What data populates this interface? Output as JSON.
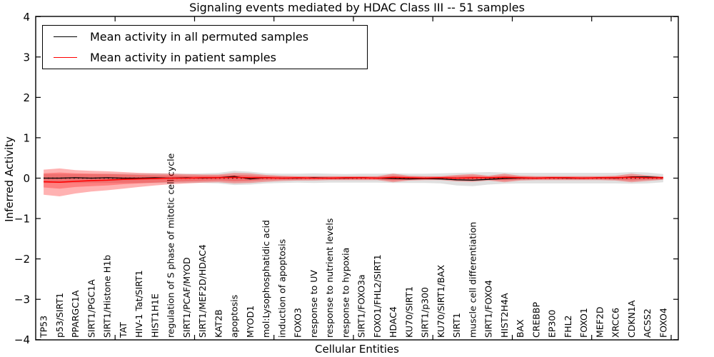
{
  "chart_data": {
    "type": "line",
    "title": "Signaling events mediated by HDAC Class III -- 51 samples",
    "xlabel": "Cellular Entities",
    "ylabel": "Inferred Activity",
    "ylim": [
      -4,
      4
    ],
    "yticks": [
      "4",
      "3",
      "2",
      "1",
      "0",
      "−1",
      "−2",
      "−3",
      "−4"
    ],
    "ytick_values": [
      4,
      3,
      2,
      1,
      0,
      -1,
      -2,
      -3,
      -4
    ],
    "grid": false,
    "legend_position": "upper-left",
    "zero_line": true,
    "categories": [
      "TP53",
      "p53/SIRT1",
      "PPARGC1A",
      "SIRT1/PGC1A",
      "SIRT1/Histone H1b",
      "TAT",
      "HIV-1 Tat/SIRT1",
      "HIST1H1E",
      "regulation of S phase of mitotic cell cycle",
      "SIRT1/PCAF/MYOD",
      "SIRT1/MEF2D/HDAC4",
      "KAT2B",
      "apoptosis",
      "MYOD1",
      "mol:Lysophosphatidic acid",
      "induction of apoptosis",
      "FOXO3",
      "response to UV",
      "response to nutrient levels",
      "response to hypoxia",
      "SIRT1/FOXO3a",
      "FOXO1/FHL2/SIRT1",
      "HDAC4",
      "KU70/SIRT1",
      "SIRT1/p300",
      "KU70/SIRT1/BAX",
      "SIRT1",
      "muscle cell differentiation",
      "SIRT1/FOXO4",
      "HIST2H4A",
      "BAX",
      "CREBBP",
      "EP300",
      "FHL2",
      "FOXO1",
      "MEF2D",
      "XRCC6",
      "CDKN1A",
      "ACSS2",
      "FOXO4"
    ],
    "series": [
      {
        "name": "Mean activity in all permuted samples",
        "color": "#000000",
        "values": [
          0.0,
          0.0,
          0.01,
          0.0,
          0.01,
          0.0,
          0.0,
          0.01,
          0.0,
          0.01,
          0.0,
          0.01,
          0.04,
          -0.02,
          0.01,
          0.0,
          0.0,
          0.01,
          0.0,
          0.0,
          0.01,
          0.0,
          -0.01,
          -0.02,
          -0.01,
          -0.02,
          -0.04,
          -0.05,
          -0.03,
          -0.01,
          0.0,
          0.0,
          0.01,
          0.0,
          0.0,
          0.01,
          0.0,
          0.03,
          0.03,
          0.01
        ]
      },
      {
        "name": "Mean activity in patient samples",
        "color": "#ff0000",
        "values": [
          -0.09,
          -0.1,
          -0.08,
          -0.06,
          -0.05,
          -0.03,
          -0.02,
          -0.01,
          0.0,
          0.0,
          0.01,
          0.01,
          0.02,
          0.01,
          0.01,
          0.0,
          0.01,
          0.0,
          0.0,
          0.01,
          0.01,
          0.0,
          0.02,
          0.01,
          0.0,
          0.01,
          0.0,
          0.01,
          0.01,
          0.02,
          0.01,
          0.0,
          0.01,
          0.01,
          0.0,
          0.01,
          0.01,
          0.02,
          0.01,
          0.01
        ]
      }
    ],
    "bands": [
      {
        "name": "permuted-samples-range",
        "color": "rgba(0,0,0,0.12)",
        "upper": [
          0.1,
          0.1,
          0.1,
          0.1,
          0.11,
          0.11,
          0.11,
          0.12,
          0.12,
          0.11,
          0.12,
          0.13,
          0.18,
          0.16,
          0.12,
          0.11,
          0.11,
          0.12,
          0.11,
          0.1,
          0.11,
          0.11,
          0.12,
          0.11,
          0.11,
          0.12,
          0.13,
          0.14,
          0.15,
          0.14,
          0.13,
          0.13,
          0.13,
          0.13,
          0.13,
          0.13,
          0.13,
          0.15,
          0.14,
          0.1
        ],
        "lower": [
          -0.12,
          -0.12,
          -0.12,
          -0.12,
          -0.12,
          -0.12,
          -0.12,
          -0.12,
          -0.12,
          -0.12,
          -0.12,
          -0.13,
          -0.17,
          -0.16,
          -0.13,
          -0.12,
          -0.11,
          -0.12,
          -0.11,
          -0.11,
          -0.11,
          -0.11,
          -0.12,
          -0.12,
          -0.12,
          -0.13,
          -0.18,
          -0.2,
          -0.16,
          -0.14,
          -0.13,
          -0.13,
          -0.13,
          -0.13,
          -0.13,
          -0.13,
          -0.13,
          -0.14,
          -0.13,
          -0.1
        ]
      },
      {
        "name": "patient-samples-range-outer",
        "color": "rgba(255,0,0,0.30)",
        "upper": [
          0.21,
          0.24,
          0.2,
          0.18,
          0.17,
          0.15,
          0.13,
          0.12,
          0.11,
          0.1,
          0.09,
          0.09,
          0.13,
          0.12,
          0.08,
          0.06,
          0.05,
          0.05,
          0.05,
          0.05,
          0.05,
          0.05,
          0.11,
          0.06,
          0.05,
          0.05,
          0.08,
          0.1,
          0.06,
          0.11,
          0.06,
          0.05,
          0.05,
          0.05,
          0.05,
          0.05,
          0.06,
          0.11,
          0.07,
          0.04
        ],
        "lower": [
          -0.41,
          -0.45,
          -0.38,
          -0.33,
          -0.3,
          -0.26,
          -0.22,
          -0.18,
          -0.15,
          -0.13,
          -0.11,
          -0.1,
          -0.13,
          -0.12,
          -0.09,
          -0.07,
          -0.06,
          -0.06,
          -0.05,
          -0.05,
          -0.05,
          -0.05,
          -0.1,
          -0.06,
          -0.05,
          -0.05,
          -0.08,
          -0.09,
          -0.06,
          -0.1,
          -0.06,
          -0.05,
          -0.05,
          -0.05,
          -0.05,
          -0.05,
          -0.06,
          -0.1,
          -0.07,
          -0.04
        ]
      },
      {
        "name": "patient-samples-range-inner",
        "color": "rgba(255,0,0,0.28)",
        "upper": [
          0.12,
          0.14,
          0.12,
          0.11,
          0.1,
          0.09,
          0.08,
          0.07,
          0.07,
          0.06,
          0.06,
          0.06,
          0.08,
          0.07,
          0.05,
          0.04,
          0.03,
          0.03,
          0.03,
          0.03,
          0.03,
          0.03,
          0.06,
          0.04,
          0.03,
          0.03,
          0.05,
          0.06,
          0.04,
          0.06,
          0.04,
          0.03,
          0.03,
          0.03,
          0.03,
          0.03,
          0.04,
          0.06,
          0.04,
          0.03
        ],
        "lower": [
          -0.23,
          -0.26,
          -0.22,
          -0.2,
          -0.18,
          -0.15,
          -0.13,
          -0.11,
          -0.09,
          -0.08,
          -0.07,
          -0.06,
          -0.08,
          -0.07,
          -0.05,
          -0.04,
          -0.04,
          -0.03,
          -0.03,
          -0.03,
          -0.03,
          -0.03,
          -0.06,
          -0.04,
          -0.03,
          -0.03,
          -0.05,
          -0.06,
          -0.04,
          -0.06,
          -0.04,
          -0.03,
          -0.03,
          -0.03,
          -0.03,
          -0.03,
          -0.04,
          -0.06,
          -0.04,
          -0.03
        ]
      }
    ]
  }
}
